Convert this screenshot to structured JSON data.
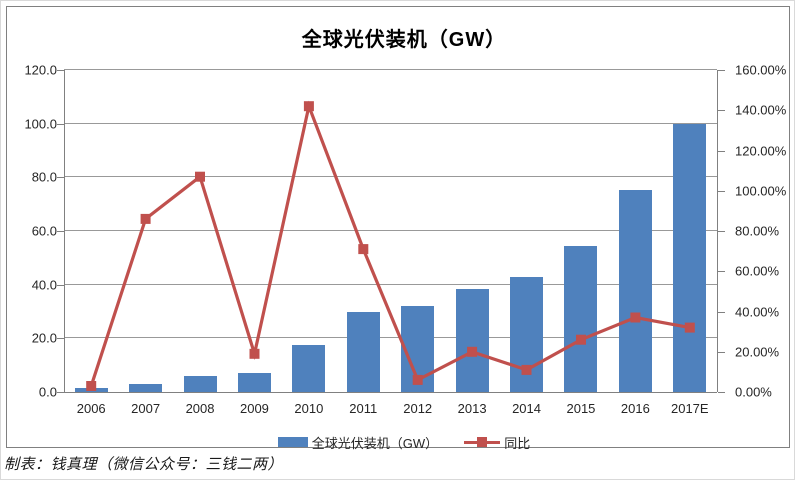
{
  "title": "全球光伏装机（GW）",
  "footer_credit": "制表：钱真理（微信公众号：三钱二两）",
  "legend": [
    {
      "label": "全球光伏装机（GW）",
      "type": "bar",
      "color": "#4F81BD"
    },
    {
      "label": "同比",
      "type": "line",
      "color": "#C0504D"
    }
  ],
  "colors": {
    "bar": "#4F81BD",
    "line": "#C0504D",
    "grid": "#999999",
    "axis": "#808080",
    "chart_border": "#808080",
    "text": "#262626"
  },
  "chart_data": {
    "type": "bar",
    "title": "全球光伏装机（GW）",
    "categories": [
      "2006",
      "2007",
      "2008",
      "2009",
      "2010",
      "2011",
      "2012",
      "2013",
      "2014",
      "2015",
      "2016",
      "2017E"
    ],
    "series": [
      {
        "name": "全球光伏装机（GW）",
        "type": "bar",
        "axis": "left",
        "unit": "GW",
        "values": [
          1.5,
          2.8,
          6.0,
          7.0,
          17.5,
          30.0,
          32.0,
          38.4,
          43.0,
          54.5,
          75.4,
          100.0
        ]
      },
      {
        "name": "同比",
        "type": "line",
        "axis": "right",
        "unit": "percent",
        "values": [
          3,
          86,
          107,
          19,
          142,
          71,
          6,
          20,
          11,
          26,
          37,
          32
        ]
      }
    ],
    "left_axis": {
      "min": 0,
      "max": 120,
      "step": 20,
      "tick_labels": [
        "120.0",
        "100.0",
        "80.0",
        "60.0",
        "40.0",
        "20.0",
        "0.0"
      ]
    },
    "right_axis": {
      "min": 0,
      "max": 160,
      "step": 20,
      "tick_labels": [
        "160.00%",
        "140.00%",
        "120.00%",
        "100.00%",
        "80.00%",
        "60.00%",
        "40.00%",
        "20.00%",
        "0.00%"
      ]
    },
    "grid": true,
    "legend_position": "bottom"
  }
}
